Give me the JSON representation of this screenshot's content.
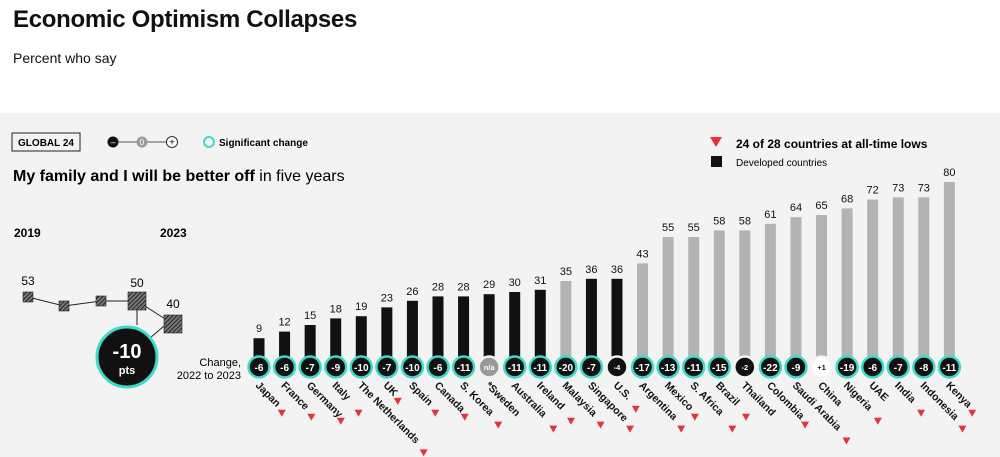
{
  "header": {
    "title": "Economic Optimism Collapses",
    "subtitle": "Percent who say"
  },
  "controls": {
    "global_label": "GLOBAL 24",
    "scale_minus": "–",
    "scale_zero": "0",
    "scale_plus": "+",
    "significant_label": "Significant change"
  },
  "legend": {
    "all_time_lows": "24 of 28 countries at all-time lows",
    "developed": "Developed countries"
  },
  "question": {
    "bold": "My family and I will be better off",
    "rest": " in five years"
  },
  "global_trend": {
    "year_start": "2019",
    "year_end": "2023",
    "labels": [
      "53",
      "50",
      "40"
    ],
    "change": "-10",
    "unit": "pts"
  },
  "change_label_line1": "Change,",
  "change_label_line2": "2022 to 2023",
  "colors": {
    "developed": "#111111",
    "developed_light": "#aaaaaa",
    "emerging": "#b3b3b3",
    "significant": "#3ddbc9",
    "arrow": "#e8323a",
    "panel": "#f3f3f3"
  },
  "chart_data": {
    "type": "bar",
    "title": "My family and I will be better off in five years",
    "ylim": [
      0,
      80
    ],
    "categories": [
      "Japan",
      "France",
      "Germany",
      "Italy",
      "The Netherlands",
      "UK",
      "Spain",
      "Canada",
      "S. Korea",
      "*Sweden",
      "Australia",
      "Ireland",
      "Malaysia",
      "Singapore",
      "U.S.",
      "Argentina",
      "Mexico",
      "S. Africa",
      "Brazil",
      "Thailand",
      "Colombia",
      "Saudi Arabia",
      "China",
      "Nigeria",
      "UAE",
      "India",
      "Indonesia",
      "Kenya"
    ],
    "values": [
      9,
      12,
      15,
      18,
      19,
      23,
      26,
      28,
      28,
      29,
      30,
      31,
      35,
      36,
      36,
      43,
      55,
      55,
      58,
      58,
      61,
      64,
      65,
      68,
      72,
      73,
      73,
      80
    ],
    "value_labels": [
      "9",
      "12",
      "15",
      "18",
      "19",
      "23",
      "26",
      "28",
      "28",
      "29",
      "30",
      "31",
      "35",
      "36",
      "36",
      "43",
      "55",
      "55",
      "58",
      "58",
      "61",
      "64",
      "65",
      "68",
      "72",
      "73",
      "73",
      "80"
    ],
    "changes": [
      "-6",
      "-6",
      "-7",
      "-9",
      "-10",
      "-7",
      "-10",
      "-6",
      "-11",
      "n/a",
      "-11",
      "-11",
      "-20",
      "-7",
      "-4",
      "-17",
      "-13",
      "-11",
      "-15",
      "-2",
      "-22",
      "-9",
      "+1",
      "-19",
      "-6",
      "-7",
      "-8",
      "-11"
    ],
    "significant": [
      true,
      true,
      true,
      true,
      true,
      true,
      true,
      true,
      true,
      false,
      true,
      true,
      true,
      true,
      false,
      true,
      true,
      true,
      true,
      false,
      true,
      true,
      false,
      true,
      true,
      true,
      true,
      true
    ],
    "developed": [
      true,
      true,
      true,
      true,
      true,
      true,
      true,
      true,
      true,
      true,
      true,
      true,
      false,
      true,
      true,
      false,
      false,
      false,
      false,
      false,
      false,
      false,
      false,
      false,
      false,
      false,
      false,
      false
    ],
    "all_time_low": [
      true,
      true,
      true,
      true,
      true,
      true,
      true,
      true,
      true,
      false,
      true,
      true,
      true,
      true,
      true,
      true,
      true,
      true,
      true,
      false,
      true,
      true,
      false,
      true,
      false,
      true,
      true,
      true
    ]
  }
}
